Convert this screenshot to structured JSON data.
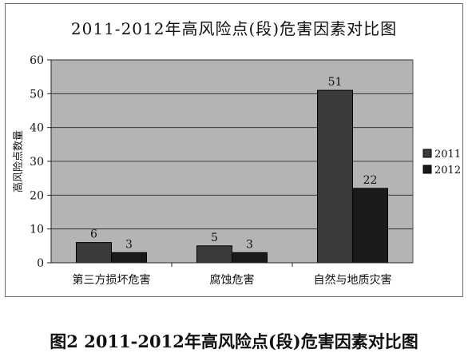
{
  "chart_data": {
    "type": "bar",
    "title": "2011-2012年高风险点(段)危害因素对比图",
    "ylabel": "高风险点数量",
    "xlabel": "",
    "categories": [
      "第三方损坏危害",
      "腐蚀危害",
      "自然与地质灾害"
    ],
    "series": [
      {
        "name": "2011",
        "values": [
          6,
          5,
          51
        ],
        "color": "#3a3a3a"
      },
      {
        "name": "2012",
        "values": [
          3,
          3,
          22
        ],
        "color": "#1a1a1a"
      }
    ],
    "ylim": [
      0,
      60
    ],
    "yticks": [
      "0",
      "10",
      "20",
      "30",
      "40",
      "50",
      "60"
    ],
    "grid": true,
    "legend": "right",
    "plot_background": "#b4b4b4"
  },
  "caption": "图2 2011-2012年高风险点(段)危害因素对比图"
}
